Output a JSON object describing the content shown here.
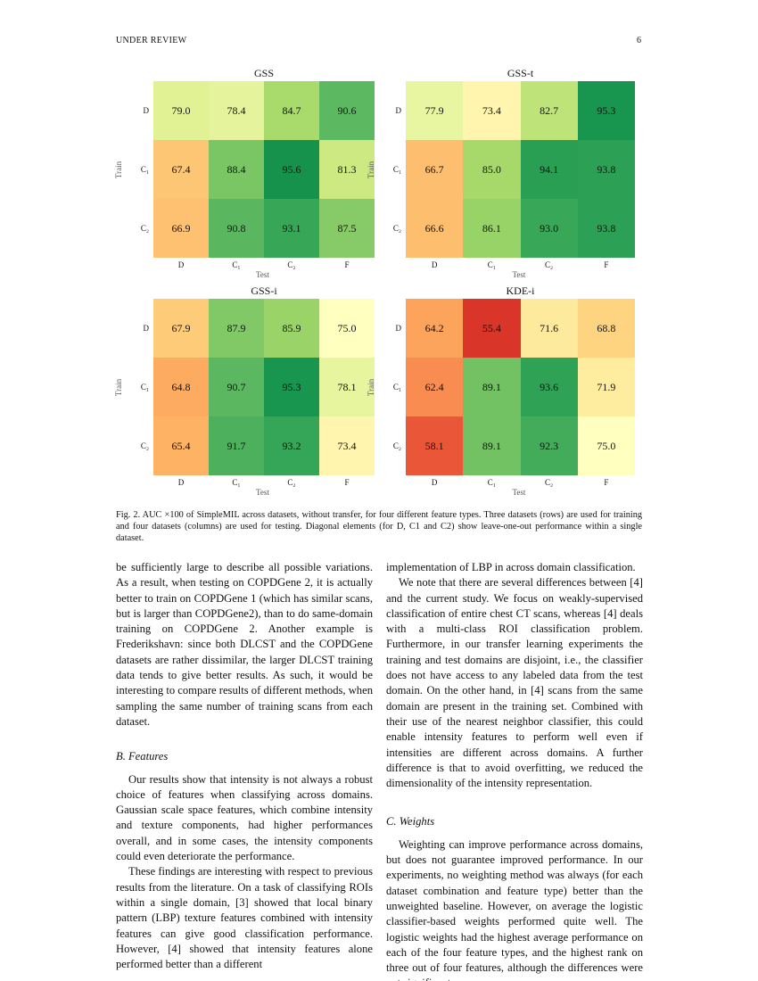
{
  "header": {
    "left": "UNDER REVIEW",
    "page_number": "6"
  },
  "figure": {
    "colormap": "RdYlGn",
    "color_range": [
      50,
      100
    ],
    "caption": "Fig. 2.   AUC ×100 of SimpleMIL across datasets, without transfer, for four different feature types. Three datasets (rows) are used for training and four datasets (columns) are used for testing. Diagonal elements (for D, C1 and C2) show leave-one-out performance within a single dataset."
  },
  "chart_data": [
    {
      "type": "heatmap",
      "title": "GSS",
      "xlabel": "Test",
      "ylabel": "Train",
      "x_categories": [
        "D",
        "C₁",
        "C₂",
        "F"
      ],
      "y_categories": [
        "D",
        "C₁",
        "C₂"
      ],
      "values": [
        [
          79.0,
          78.4,
          84.7,
          90.6
        ],
        [
          67.4,
          88.4,
          95.6,
          81.3
        ],
        [
          66.9,
          90.8,
          93.1,
          87.5
        ]
      ]
    },
    {
      "type": "heatmap",
      "title": "GSS-t",
      "xlabel": "Test",
      "ylabel": "Train",
      "x_categories": [
        "D",
        "C₁",
        "C₂",
        "F"
      ],
      "y_categories": [
        "D",
        "C₁",
        "C₂"
      ],
      "values": [
        [
          77.9,
          73.4,
          82.7,
          95.3
        ],
        [
          66.7,
          85.0,
          94.1,
          93.8
        ],
        [
          66.6,
          86.1,
          93.0,
          93.8
        ]
      ]
    },
    {
      "type": "heatmap",
      "title": "GSS-i",
      "xlabel": "Test",
      "ylabel": "Train",
      "x_categories": [
        "D",
        "C₁",
        "C₂",
        "F"
      ],
      "y_categories": [
        "D",
        "C₁",
        "C₂"
      ],
      "values": [
        [
          67.9,
          87.9,
          85.9,
          75.0
        ],
        [
          64.8,
          90.7,
          95.3,
          78.1
        ],
        [
          65.4,
          91.7,
          93.2,
          73.4
        ]
      ]
    },
    {
      "type": "heatmap",
      "title": "KDE-i",
      "xlabel": "Test",
      "ylabel": "Train",
      "x_categories": [
        "D",
        "C₁",
        "C₂",
        "F"
      ],
      "y_categories": [
        "D",
        "C₁",
        "C₂"
      ],
      "values": [
        [
          64.2,
          55.4,
          71.6,
          68.8
        ],
        [
          62.4,
          89.1,
          93.6,
          71.9
        ],
        [
          58.1,
          89.1,
          92.3,
          75.0
        ]
      ]
    }
  ],
  "left_column": {
    "p1": "be sufficiently large to describe all possible variations. As a result, when testing on COPDGene 2, it is actually better to train on COPDGene 1 (which has similar scans, but is larger than COPDGene2), than to do same-domain training on COPDGene 2. Another example is Frederikshavn: since both DLCST and the COPDGene datasets are rather dissimilar, the larger DLCST training data tends to give better results. As such, it would be interesting to compare results of different methods, when sampling the same number of training scans from each dataset.",
    "heading": "B. Features",
    "p2": "Our results show that intensity is not always a robust choice of features when classifying across domains. Gaussian scale space features, which combine intensity and texture components, had higher performances overall, and in some cases, the intensity components could even deteriorate the performance.",
    "p3": "These findings are interesting with respect to previous results from the literature. On a task of classifying ROIs within a single domain, [3] showed that local binary pattern (LBP) texture features combined with intensity features can give good classification performance. However, [4] showed that intensity features alone performed better than a different"
  },
  "right_column": {
    "p1": "implementation of LBP in across domain classification.",
    "p2": "We note that there are several differences between [4] and the current study. We focus on weakly-supervised classification of entire chest CT scans, whereas [4] deals with a multi-class ROI classification problem. Furthermore, in our transfer learning experiments the training and test domains are disjoint, i.e., the classifier does not have access to any labeled data from the test domain. On the other hand, in [4] scans from the same domain are present in the training set. Combined with their use of the nearest neighbor classifier, this could enable intensity features to perform well even if intensities are different across domains. A further difference is that to avoid overfitting, we reduced the dimensionality of the intensity representation.",
    "heading": "C. Weights",
    "p3": "Weighting can improve performance across domains, but does not guarantee improved performance. In our experiments, no weighting method was always (for each dataset combination and feature type) better than the unweighted baseline. However, on average the logistic classifier-based weights performed quite well. The logistic weights had the highest average performance on each of the four feature types, and the highest rank on three out of four features, although the differences were not significant."
  }
}
